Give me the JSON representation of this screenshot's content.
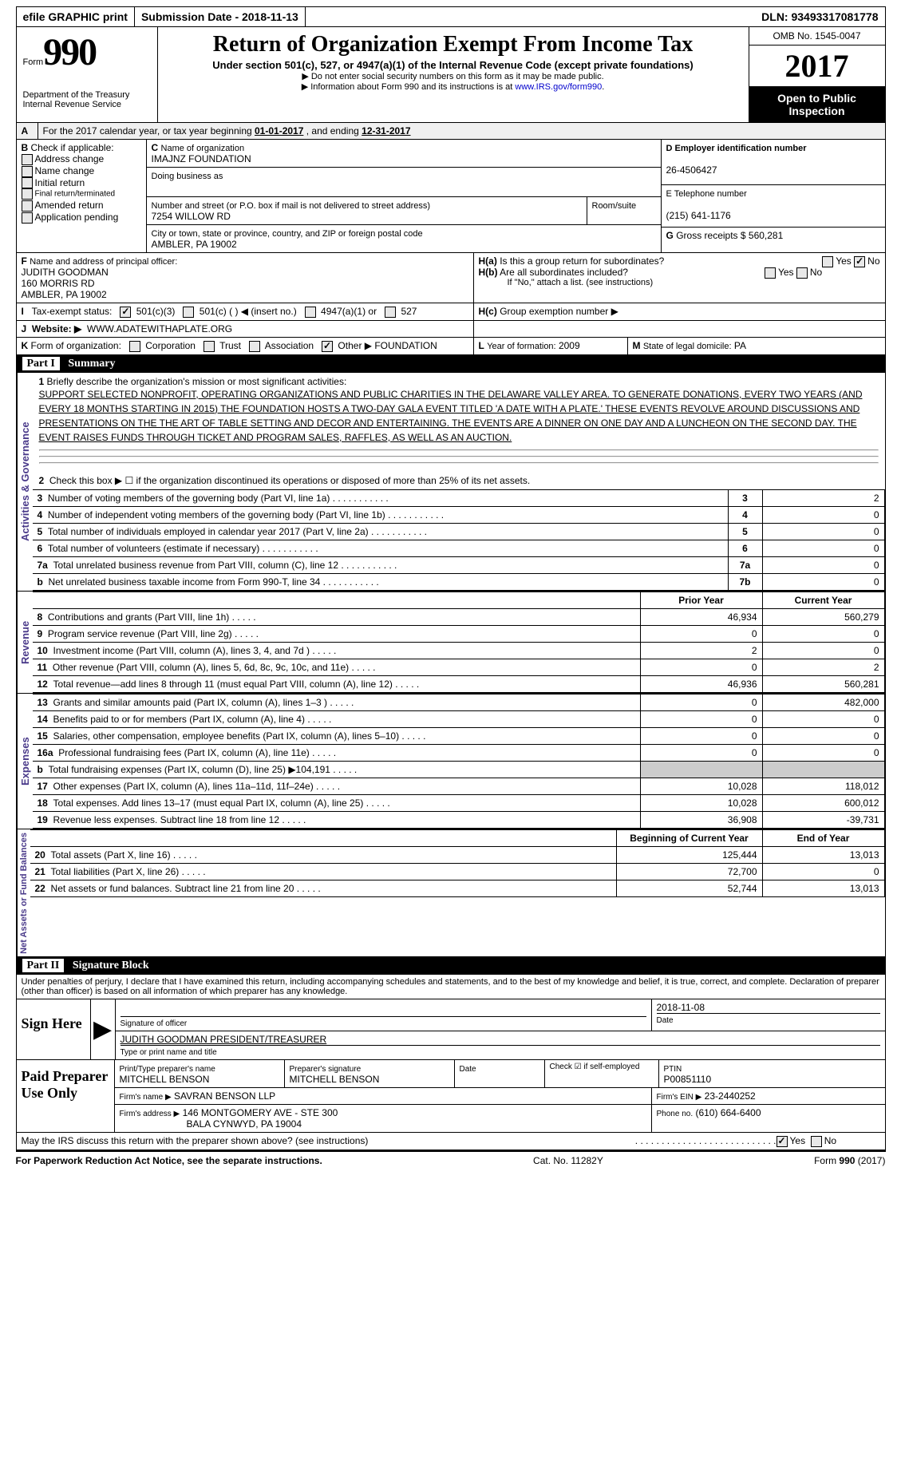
{
  "topbar": {
    "efile": "efile GRAPHIC print",
    "submission": "Submission Date - 2018-11-13",
    "dln": "DLN: 93493317081778"
  },
  "header": {
    "form_label": "Form",
    "form_number": "990",
    "dept": "Department of the Treasury",
    "irs": "Internal Revenue Service",
    "title": "Return of Organization Exempt From Income Tax",
    "subtitle": "Under section 501(c), 527, or 4947(a)(1) of the Internal Revenue Code (except private foundations)",
    "note1": "▶ Do not enter social security numbers on this form as it may be made public.",
    "note2_pre": "▶ Information about Form 990 and its instructions is at ",
    "note2_link": "www.IRS.gov/form990",
    "omb": "OMB No. 1545-0047",
    "year": "2017",
    "inspection1": "Open to Public",
    "inspection2": "Inspection"
  },
  "A": {
    "label": "A",
    "text_pre": "For the 2017 calendar year, or tax year beginning ",
    "begin": "01-01-2017",
    "mid": " , and ending ",
    "end": "12-31-2017"
  },
  "B": {
    "label": "B",
    "title": "Check if applicable:",
    "items": [
      "Address change",
      "Name change",
      "Initial return",
      "Final return/terminated",
      "Amended return",
      "Application pending"
    ]
  },
  "C": {
    "label": "C",
    "name_label": "Name of organization",
    "name": "IMAJNZ FOUNDATION",
    "dba_label": "Doing business as",
    "street_label": "Number and street (or P.O. box if mail is not delivered to street address)",
    "room_label": "Room/suite",
    "street": "7254 WILLOW RD",
    "city_label": "City or town, state or province, country, and ZIP or foreign postal code",
    "city": "AMBLER, PA  19002"
  },
  "D": {
    "label": "D Employer identification number",
    "value": "26-4506427"
  },
  "E": {
    "label": "E Telephone number",
    "value": "(215) 641-1176"
  },
  "F": {
    "label_letter": "F",
    "label": "Name and address of principal officer:",
    "name": "JUDITH GOODMAN",
    "street": "160 MORRIS RD",
    "city": "AMBLER, PA  19002"
  },
  "G": {
    "label": "G",
    "text": "Gross receipts $",
    "value": "560,281"
  },
  "H": {
    "a_label": "H(a)",
    "a_text": "Is this a group return for subordinates?",
    "b_label": "H(b)",
    "b_text": "Are all subordinates included?",
    "b_note": "If \"No,\" attach a list. (see instructions)",
    "c_label": "H(c)",
    "c_text": "Group exemption number ▶",
    "yes": "Yes",
    "no": "No"
  },
  "I": {
    "label": "I",
    "text": "Tax-exempt status:",
    "opts": [
      "501(c)(3)",
      "501(c) (  ) ◀ (insert no.)",
      "4947(a)(1) or",
      "527"
    ]
  },
  "J": {
    "label": "J",
    "text": "Website: ▶",
    "value": "WWW.ADATEWITHAPLATE.ORG"
  },
  "K": {
    "label": "K",
    "text": "Form of organization:",
    "opts": [
      "Corporation",
      "Trust",
      "Association",
      "Other ▶"
    ],
    "other_value": "FOUNDATION"
  },
  "L": {
    "label": "L",
    "text": "Year of formation:",
    "value": "2009"
  },
  "M": {
    "label": "M",
    "text": "State of legal domicile:",
    "value": "PA"
  },
  "part1": {
    "title": "Part I",
    "subtitle": "Summary",
    "side_activities": "Activities & Governance",
    "side_revenue": "Revenue",
    "side_expenses": "Expenses",
    "side_netassets": "Net Assets or Fund Balances",
    "line1_label": "1",
    "line1_text": "Briefly describe the organization's mission or most significant activities:",
    "line1_body": "SUPPORT SELECTED NONPROFIT, OPERATING ORGANIZATIONS AND PUBLIC CHARITIES IN THE DELAWARE VALLEY AREA. TO GENERATE DONATIONS, EVERY TWO YEARS (AND EVERY 18 MONTHS STARTING IN 2015) THE FOUNDATION HOSTS A TWO-DAY GALA EVENT TITLED 'A DATE WITH A PLATE.' THESE EVENTS REVOLVE AROUND DISCUSSIONS AND PRESENTATIONS ON THE THE ART OF TABLE SETTING AND DECOR AND ENTERTAINING. THE EVENTS ARE A DINNER ON ONE DAY AND A LUNCHEON ON THE SECOND DAY. THE EVENT RAISES FUNDS THROUGH TICKET AND PROGRAM SALES, RAFFLES, AS WELL AS AN AUCTION.",
    "line2": "Check this box ▶ ☐ if the organization discontinued its operations or disposed of more than 25% of its net assets.",
    "rows_ag": [
      {
        "n": "3",
        "label": "Number of voting members of the governing body (Part VI, line 1a)",
        "box": "3",
        "val": "2"
      },
      {
        "n": "4",
        "label": "Number of independent voting members of the governing body (Part VI, line 1b)",
        "box": "4",
        "val": "0"
      },
      {
        "n": "5",
        "label": "Total number of individuals employed in calendar year 2017 (Part V, line 2a)",
        "box": "5",
        "val": "0"
      },
      {
        "n": "6",
        "label": "Total number of volunteers (estimate if necessary)",
        "box": "6",
        "val": "0"
      },
      {
        "n": "7a",
        "label": "Total unrelated business revenue from Part VIII, column (C), line 12",
        "box": "7a",
        "val": "0"
      },
      {
        "n": "b",
        "label": "Net unrelated business taxable income from Form 990-T, line 34",
        "box": "7b",
        "val": "0"
      }
    ],
    "col_prior": "Prior Year",
    "col_current": "Current Year",
    "col_beg": "Beginning of Current Year",
    "col_end": "End of Year",
    "rows_rev": [
      {
        "n": "8",
        "label": "Contributions and grants (Part VIII, line 1h)",
        "prior": "46,934",
        "curr": "560,279"
      },
      {
        "n": "9",
        "label": "Program service revenue (Part VIII, line 2g)",
        "prior": "0",
        "curr": "0"
      },
      {
        "n": "10",
        "label": "Investment income (Part VIII, column (A), lines 3, 4, and 7d )",
        "prior": "2",
        "curr": "0"
      },
      {
        "n": "11",
        "label": "Other revenue (Part VIII, column (A), lines 5, 6d, 8c, 9c, 10c, and 11e)",
        "prior": "0",
        "curr": "2"
      },
      {
        "n": "12",
        "label": "Total revenue—add lines 8 through 11 (must equal Part VIII, column (A), line 12)",
        "prior": "46,936",
        "curr": "560,281"
      }
    ],
    "rows_exp": [
      {
        "n": "13",
        "label": "Grants and similar amounts paid (Part IX, column (A), lines 1–3 )",
        "prior": "0",
        "curr": "482,000"
      },
      {
        "n": "14",
        "label": "Benefits paid to or for members (Part IX, column (A), line 4)",
        "prior": "0",
        "curr": "0"
      },
      {
        "n": "15",
        "label": "Salaries, other compensation, employee benefits (Part IX, column (A), lines 5–10)",
        "prior": "0",
        "curr": "0"
      },
      {
        "n": "16a",
        "label": "Professional fundraising fees (Part IX, column (A), line 11e)",
        "prior": "0",
        "curr": "0"
      },
      {
        "n": "b",
        "label": "Total fundraising expenses (Part IX, column (D), line 25) ▶104,191",
        "prior": "SHADED",
        "curr": "SHADED"
      },
      {
        "n": "17",
        "label": "Other expenses (Part IX, column (A), lines 11a–11d, 11f–24e)",
        "prior": "10,028",
        "curr": "118,012"
      },
      {
        "n": "18",
        "label": "Total expenses. Add lines 13–17 (must equal Part IX, column (A), line 25)",
        "prior": "10,028",
        "curr": "600,012"
      },
      {
        "n": "19",
        "label": "Revenue less expenses. Subtract line 18 from line 12",
        "prior": "36,908",
        "curr": "-39,731"
      }
    ],
    "rows_net": [
      {
        "n": "20",
        "label": "Total assets (Part X, line 16)",
        "prior": "125,444",
        "curr": "13,013"
      },
      {
        "n": "21",
        "label": "Total liabilities (Part X, line 26)",
        "prior": "72,700",
        "curr": "0"
      },
      {
        "n": "22",
        "label": "Net assets or fund balances. Subtract line 21 from line 20",
        "prior": "52,744",
        "curr": "13,013"
      }
    ]
  },
  "part2": {
    "title": "Part II",
    "subtitle": "Signature Block",
    "penalties": "Under penalties of perjury, I declare that I have examined this return, including accompanying schedules and statements, and to the best of my knowledge and belief, it is true, correct, and complete. Declaration of preparer (other than officer) is based on all information of which preparer has any knowledge.",
    "sign_here": "Sign Here",
    "sig_officer": "Signature of officer",
    "date_label": "Date",
    "sig_date": "2018-11-08",
    "officer_name": "JUDITH GOODMAN PRESIDENT/TREASURER",
    "type_name": "Type or print name and title",
    "paid": "Paid Preparer Use Only",
    "prep_name_label": "Print/Type preparer's name",
    "prep_name": "MITCHELL BENSON",
    "prep_sig_label": "Preparer's signature",
    "prep_sig": "MITCHELL BENSON",
    "check_self": "Check ☑ if self-employed",
    "ptin_label": "PTIN",
    "ptin": "P00851110",
    "firm_name_label": "Firm's name    ▶",
    "firm_name": "SAVRAN BENSON LLP",
    "firm_ein_label": "Firm's EIN ▶",
    "firm_ein": "23-2440252",
    "firm_addr_label": "Firm's address ▶",
    "firm_addr1": "146 MONTGOMERY AVE - STE 300",
    "firm_addr2": "BALA CYNWYD, PA  19004",
    "phone_label": "Phone no.",
    "phone": "(610) 664-6400",
    "discuss": "May the IRS discuss this return with the preparer shown above? (see instructions)",
    "yes": "Yes",
    "no": "No"
  },
  "footer": {
    "left": "For Paperwork Reduction Act Notice, see the separate instructions.",
    "center": "Cat. No. 11282Y",
    "right_pre": "Form ",
    "right_num": "990",
    "right_post": " (2017)"
  }
}
